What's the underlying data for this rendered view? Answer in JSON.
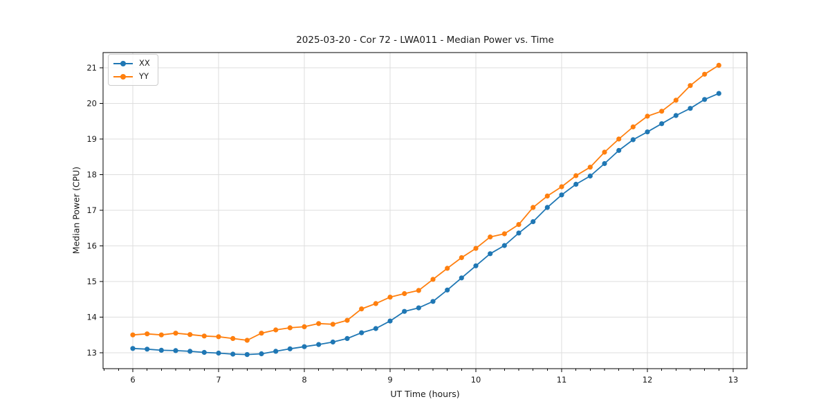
{
  "chart_data": {
    "type": "line",
    "title": "2025-03-20 - Cor 72 - LWA011 - Median Power vs. Time",
    "xlabel": "UT Time (hours)",
    "ylabel": "Median Power (CPU)",
    "xlim": [
      5.653,
      13.161
    ],
    "ylim": [
      12.553,
      21.427
    ],
    "x_ticks": [
      6,
      7,
      8,
      9,
      10,
      11,
      12,
      13
    ],
    "y_ticks": [
      13,
      14,
      15,
      16,
      17,
      18,
      19,
      20,
      21
    ],
    "x_minor_tick_step": 0.1667,
    "grid": true,
    "grid_color": "#dedede",
    "legend_position": "upper left",
    "background_color": "#ffffff",
    "x": [
      6.0,
      6.167,
      6.333,
      6.5,
      6.667,
      6.833,
      7.0,
      7.167,
      7.333,
      7.5,
      7.667,
      7.833,
      8.0,
      8.167,
      8.333,
      8.5,
      8.667,
      8.833,
      9.0,
      9.167,
      9.333,
      9.5,
      9.667,
      9.833,
      10.0,
      10.167,
      10.333,
      10.5,
      10.667,
      10.833,
      11.0,
      11.167,
      11.333,
      11.5,
      11.667,
      11.833,
      12.0,
      12.167,
      12.333,
      12.5,
      12.667,
      12.833
    ],
    "series": [
      {
        "name": "XX",
        "color": "#1f77b4",
        "marker": "circle",
        "values": [
          13.12,
          13.1,
          13.07,
          13.06,
          13.04,
          13.01,
          12.99,
          12.96,
          12.95,
          12.97,
          13.04,
          13.11,
          13.17,
          13.23,
          13.3,
          13.4,
          13.56,
          13.68,
          13.89,
          14.16,
          14.26,
          14.44,
          14.76,
          15.1,
          15.44,
          15.78,
          16.01,
          16.36,
          16.68,
          17.08,
          17.43,
          17.73,
          17.96,
          18.31,
          18.68,
          18.98,
          19.2,
          19.43,
          19.66,
          19.86,
          20.11,
          20.28
        ]
      },
      {
        "name": "YY",
        "color": "#ff7f0e",
        "marker": "circle",
        "values": [
          13.5,
          13.53,
          13.5,
          13.55,
          13.51,
          13.47,
          13.45,
          13.4,
          13.35,
          13.55,
          13.64,
          13.7,
          13.73,
          13.82,
          13.8,
          13.91,
          14.23,
          14.38,
          14.56,
          14.66,
          14.75,
          15.06,
          15.37,
          15.67,
          15.93,
          16.25,
          16.34,
          16.6,
          17.08,
          17.4,
          17.66,
          17.97,
          18.21,
          18.63,
          19.0,
          19.34,
          19.64,
          19.78,
          20.09,
          20.5,
          20.82,
          21.07
        ]
      }
    ]
  }
}
